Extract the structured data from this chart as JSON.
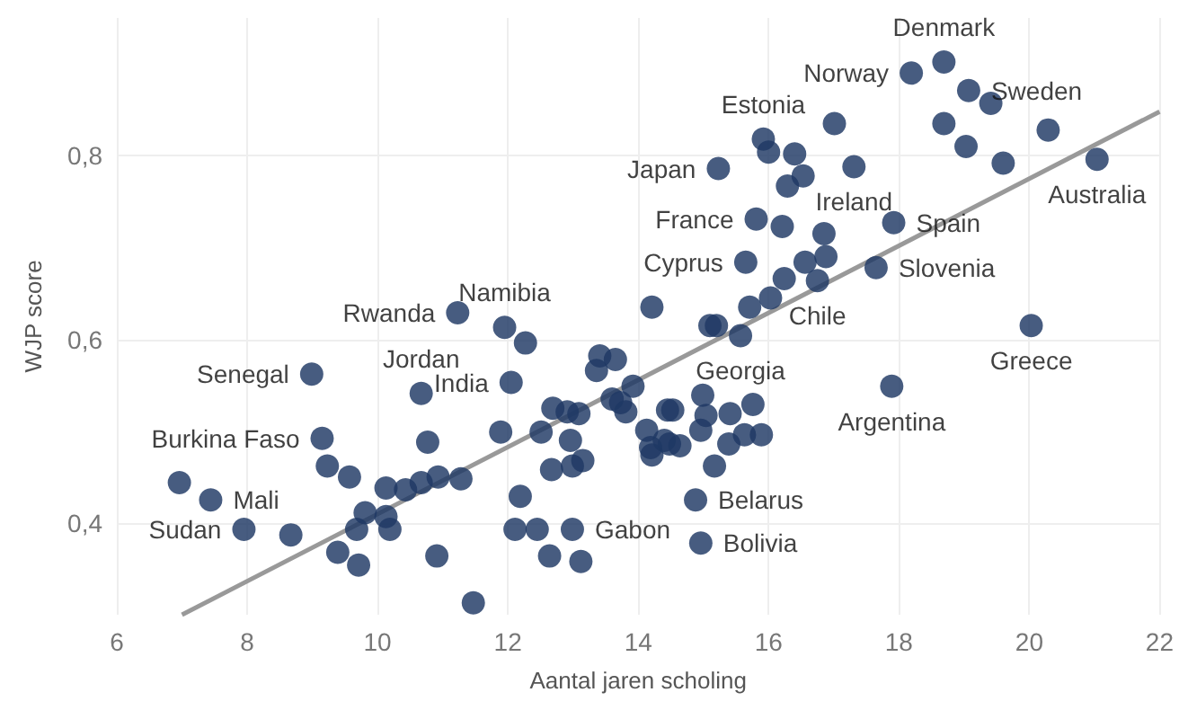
{
  "chart_data": {
    "type": "scatter",
    "xlabel": "Aantal jaren scholing",
    "ylabel": "WJP score",
    "xlim": [
      6,
      22
    ],
    "xticks": [
      6,
      8,
      10,
      12,
      14,
      16,
      18,
      20,
      22
    ],
    "ylim": [
      0.3,
      0.95
    ],
    "yticks": [
      {
        "value": 0.4,
        "label": "0,4"
      },
      {
        "value": 0.6,
        "label": "0,6"
      },
      {
        "value": 0.8,
        "label": "0,8"
      }
    ],
    "grid": true,
    "series": [
      {
        "color": "#1f3864",
        "marker": "circle",
        "x": [
          18.69,
          18.19,
          19.07,
          19.41,
          18.69,
          17.01,
          20.29,
          19.03,
          15.92,
          16.0,
          16.4,
          16.53,
          16.29,
          17.31,
          19.6,
          21.04,
          15.23,
          15.81,
          16.21,
          16.85,
          16.88,
          16.56,
          17.92,
          17.65,
          15.65,
          16.24,
          16.75,
          16.03,
          15.71,
          15.1,
          15.2,
          15.57,
          14.21,
          20.03,
          17.89,
          11.23,
          11.95,
          12.27,
          8.99,
          10.67,
          12.05,
          13.41,
          13.65,
          13.36,
          9.15,
          9.23,
          9.57,
          10.77,
          11.89,
          12.51,
          12.69,
          12.91,
          13.09,
          12.96,
          12.67,
          12.99,
          13.15,
          10.13,
          10.43,
          10.67,
          10.93,
          11.28,
          12.19,
          6.96,
          7.44,
          7.95,
          8.67,
          9.81,
          9.68,
          10.19,
          10.13,
          9.39,
          9.71,
          10.91,
          11.47,
          12.11,
          12.45,
          12.99,
          12.64,
          13.12,
          13.92,
          13.6,
          13.73,
          13.81,
          14.13,
          14.19,
          14.21,
          14.45,
          14.53,
          14.4,
          14.48,
          14.64,
          14.99,
          15.04,
          14.96,
          15.17,
          15.41,
          15.76,
          15.39,
          15.63,
          15.89,
          14.88,
          14.96
        ],
        "values": [
          0.902,
          0.89,
          0.871,
          0.857,
          0.835,
          0.835,
          0.828,
          0.81,
          0.818,
          0.804,
          0.802,
          0.778,
          0.767,
          0.788,
          0.792,
          0.796,
          0.786,
          0.731,
          0.723,
          0.715,
          0.69,
          0.684,
          0.727,
          0.678,
          0.684,
          0.666,
          0.664,
          0.645,
          0.635,
          0.615,
          0.615,
          0.604,
          0.635,
          0.615,
          0.549,
          0.629,
          0.613,
          0.596,
          0.562,
          0.541,
          0.553,
          0.582,
          0.578,
          0.566,
          0.492,
          0.462,
          0.45,
          0.488,
          0.499,
          0.499,
          0.525,
          0.521,
          0.519,
          0.49,
          0.458,
          0.462,
          0.468,
          0.438,
          0.436,
          0.444,
          0.45,
          0.448,
          0.429,
          0.444,
          0.425,
          0.393,
          0.387,
          0.411,
          0.393,
          0.393,
          0.407,
          0.368,
          0.354,
          0.364,
          0.313,
          0.393,
          0.393,
          0.393,
          0.364,
          0.358,
          0.549,
          0.535,
          0.531,
          0.521,
          0.501,
          0.482,
          0.474,
          0.523,
          0.523,
          0.49,
          0.486,
          0.484,
          0.539,
          0.517,
          0.501,
          0.462,
          0.519,
          0.529,
          0.486,
          0.496,
          0.496,
          0.425,
          0.378
        ]
      },
      {
        "type": "line",
        "marker": "none",
        "color": "#999999",
        "x": [
          7.0,
          22
        ],
        "values": [
          0.3,
          0.848
        ]
      }
    ],
    "annotations": [
      {
        "text": "Denmark",
        "x": 18.69,
        "y": 0.902
      },
      {
        "text": "Norway",
        "x": 18.19,
        "y": 0.89
      },
      {
        "text": "Sweden",
        "x": 19.07,
        "y": 0.871
      },
      {
        "text": "Estonia",
        "x": 15.92,
        "y": 0.818
      },
      {
        "text": "Japan",
        "x": 15.23,
        "y": 0.786
      },
      {
        "text": "Ireland",
        "x": 17.31,
        "y": 0.788
      },
      {
        "text": "Australia",
        "x": 21.04,
        "y": 0.796
      },
      {
        "text": "France",
        "x": 15.81,
        "y": 0.731
      },
      {
        "text": "Spain",
        "x": 17.92,
        "y": 0.727
      },
      {
        "text": "Cyprus",
        "x": 15.65,
        "y": 0.684
      },
      {
        "text": "Slovenia",
        "x": 17.65,
        "y": 0.678
      },
      {
        "text": "Chile",
        "x": 16.75,
        "y": 0.664
      },
      {
        "text": "Greece",
        "x": 20.03,
        "y": 0.615
      },
      {
        "text": "Georgia",
        "x": 15.57,
        "y": 0.604
      },
      {
        "text": "Argentina",
        "x": 17.89,
        "y": 0.549
      },
      {
        "text": "Rwanda",
        "x": 11.23,
        "y": 0.629
      },
      {
        "text": "Namibia",
        "x": 11.95,
        "y": 0.613
      },
      {
        "text": "Senegal",
        "x": 8.99,
        "y": 0.562
      },
      {
        "text": "Jordan",
        "x": 10.67,
        "y": 0.541
      },
      {
        "text": "India",
        "x": 12.05,
        "y": 0.553
      },
      {
        "text": "Burkina Faso",
        "x": 9.15,
        "y": 0.492
      },
      {
        "text": "Mali",
        "x": 7.44,
        "y": 0.425
      },
      {
        "text": "Sudan",
        "x": 7.95,
        "y": 0.393
      },
      {
        "text": "Gabon",
        "x": 12.99,
        "y": 0.393
      },
      {
        "text": "Belarus",
        "x": 14.88,
        "y": 0.425
      },
      {
        "text": "Bolivia",
        "x": 14.96,
        "y": 0.378
      }
    ]
  }
}
